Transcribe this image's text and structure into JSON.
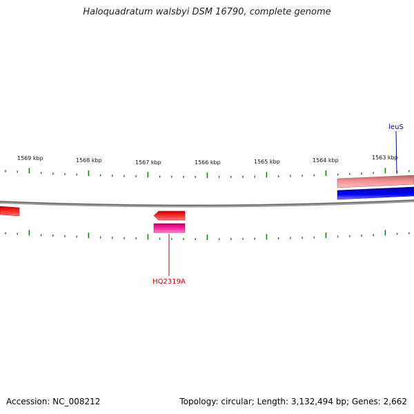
{
  "title": "Haloquadratum walsbyi DSM 16790, complete genome",
  "footer": {
    "accession": "Accession: NC_008212",
    "summary": "Topology: circular; Length: 3,132,494 bp; Genes: 2,662"
  },
  "kbp_ticks": [
    "1569 kbp",
    "1568 kbp",
    "1567 kbp",
    "1566 kbp",
    "1565 kbp",
    "1564 kbp",
    "1563 kbp"
  ],
  "gene_labels": {
    "leus": "leuS",
    "hq2319a": "HQ2319A"
  },
  "colors": {
    "backbone": "#8a8a8a",
    "ticks": "#1a7a1a",
    "gene_red": "#ff0000",
    "gene_salmon": "#ee8888",
    "gene_blue": "#0000ee",
    "gene_pink": "#ee1188",
    "label_red": "#cc0000",
    "label_blue": "#0000aa"
  }
}
